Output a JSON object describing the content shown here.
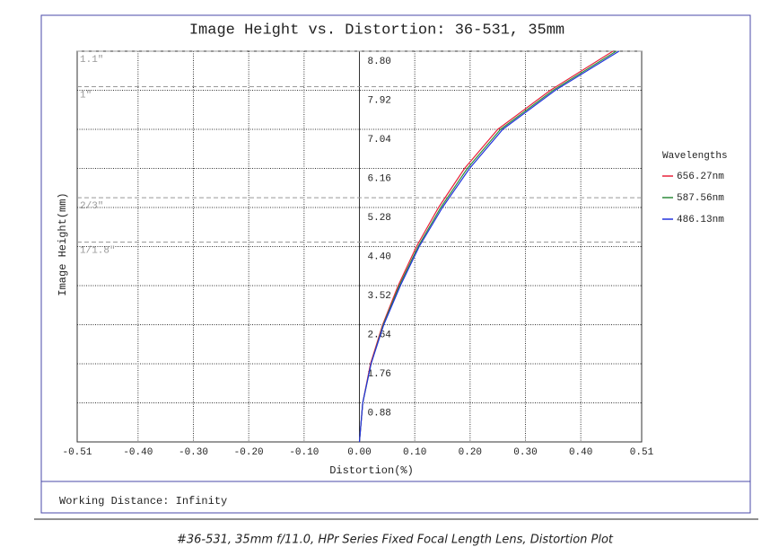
{
  "chart_data": {
    "type": "line",
    "title": "Image Height vs. Distortion: 36-531, 35mm",
    "x_label": "Distortion(%)",
    "y_label": "Image Height(mm)",
    "y": [
      0,
      0.88,
      1.76,
      2.64,
      3.52,
      4.4,
      5.28,
      6.16,
      7.04,
      7.92,
      8.8
    ],
    "series": [
      {
        "name": "656.27nm",
        "color": "#e8233b",
        "values": [
          0,
          0.006,
          0.02,
          0.042,
          0.07,
          0.103,
          0.143,
          0.19,
          0.25,
          0.345,
          0.458
        ]
      },
      {
        "name": "587.56nm",
        "color": "#2e8b3a",
        "values": [
          0,
          0.006,
          0.021,
          0.043,
          0.072,
          0.106,
          0.147,
          0.195,
          0.255,
          0.35,
          0.464
        ]
      },
      {
        "name": "486.13nm",
        "color": "#2233dd",
        "values": [
          0,
          0.006,
          0.021,
          0.044,
          0.074,
          0.108,
          0.15,
          0.199,
          0.259,
          0.354,
          0.469
        ]
      }
    ],
    "legend_title": "Wavelengths",
    "legend_position": "right",
    "xlim": [
      -0.51,
      0.51
    ],
    "xticks": [
      -0.51,
      {
        "value": -0.4,
        "label": "-0.40"
      },
      {
        "value": -0.3,
        "label": "-0.30"
      },
      {
        "value": -0.2,
        "label": "-0.20"
      },
      {
        "value": -0.1,
        "label": "-0.10"
      },
      {
        "value": 0,
        "label": "0.00"
      },
      {
        "value": 0.1,
        "label": "0.10"
      },
      {
        "value": 0.2,
        "label": "0.20"
      },
      {
        "value": 0.3,
        "label": "0.30"
      },
      {
        "value": 0.4,
        "label": "0.40"
      },
      0.51
    ],
    "ylim": [
      0,
      8.8
    ],
    "yticks": [
      0.88,
      1.76,
      2.64,
      3.52,
      {
        "value": 4.4,
        "label": "4.40"
      },
      5.28,
      6.16,
      7.04,
      7.92,
      {
        "value": 8.8,
        "label": "8.80"
      }
    ],
    "grid": true,
    "sensor_lines": [
      {
        "label": "1.1\"",
        "value": 8.8
      },
      {
        "label": "1\"",
        "value": 8.0
      },
      {
        "label": "2/3\"",
        "value": 5.5
      },
      {
        "label": "1/1.8\"",
        "value": 4.5
      }
    ],
    "footer": "Working Distance: Infinity",
    "caption": "#36-531, 35mm f/11.0, HPr Series Fixed Focal Length Lens, Distortion Plot"
  }
}
